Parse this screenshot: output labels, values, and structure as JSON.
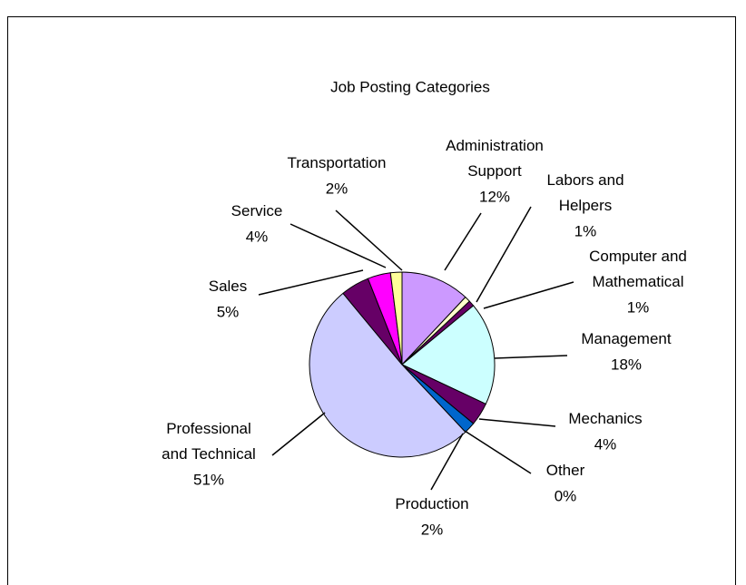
{
  "chart_data": {
    "type": "pie",
    "title": "Job Posting Categories",
    "categories": [
      "Administration\nSupport",
      "Labors and\nHelpers",
      "Computer and\nMathematical",
      "Management",
      "Mechanics",
      "Other",
      "Production",
      "Professional\nand Technical",
      "Sales",
      "Service",
      "Transportation"
    ],
    "values": [
      12,
      1,
      1,
      18,
      4,
      0,
      2,
      51,
      5,
      4,
      2
    ],
    "value_labels": [
      "12%",
      "1%",
      "1%",
      "18%",
      "4%",
      "0%",
      "2%",
      "51%",
      "5%",
      "4%",
      "2%"
    ],
    "colors": [
      "#cc99ff",
      "#ffffcc",
      "#660066",
      "#ccffff",
      "#660066",
      "#cc99ff",
      "#0066cc",
      "#ccccff",
      "#660066",
      "#ff00ff",
      "#ffff99"
    ]
  }
}
